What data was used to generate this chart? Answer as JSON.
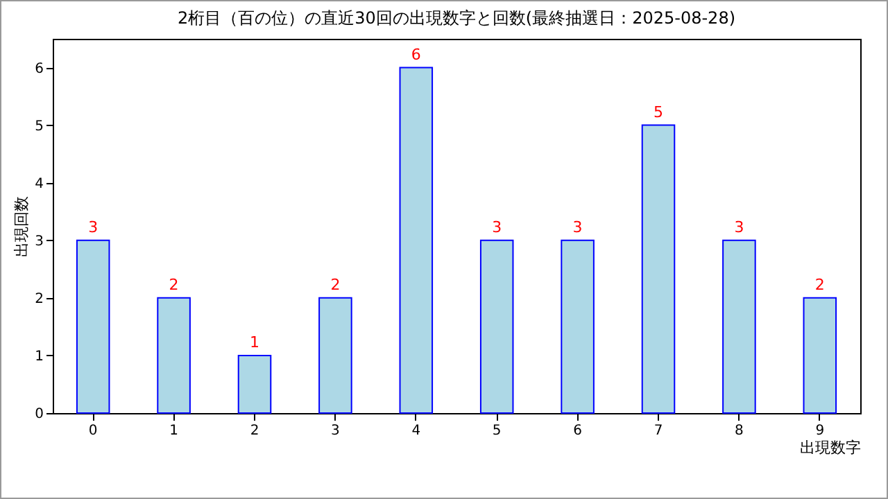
{
  "chart_data": {
    "type": "bar",
    "title": "2桁目（百の位）の直近30回の出現数字と回数(最終抽選日：2025-08-28)",
    "xlabel": "出現数字",
    "ylabel": "出現回数",
    "categories": [
      "0",
      "1",
      "2",
      "3",
      "4",
      "5",
      "6",
      "7",
      "8",
      "9"
    ],
    "values": [
      3,
      2,
      1,
      2,
      6,
      3,
      3,
      5,
      3,
      2
    ],
    "color": "#add8e6",
    "ylim": [
      0,
      6.5
    ],
    "yticks": [
      0,
      1,
      2,
      3,
      4,
      5,
      6
    ],
    "data_labels": true
  }
}
